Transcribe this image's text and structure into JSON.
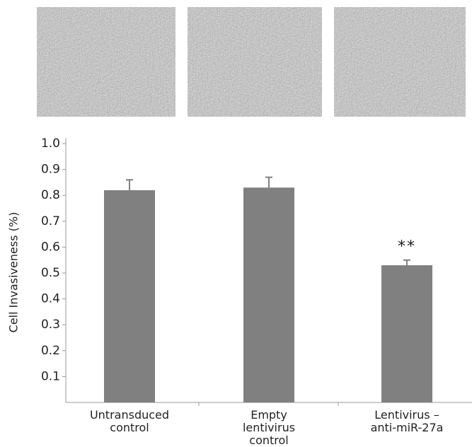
{
  "chart_data": {
    "type": "bar",
    "ylabel": "Cell Invasiveness (%)",
    "categories": [
      "Untransduced control",
      "Empty lentivirus control",
      "Lentivirus – anti-miR-27a"
    ],
    "values": [
      0.82,
      0.83,
      0.53
    ],
    "errors": [
      0.04,
      0.04,
      0.02
    ],
    "color": "#808080",
    "ylim": [
      0,
      1
    ],
    "yticks": [
      0.1,
      0.2,
      0.3,
      0.4,
      0.5,
      0.6,
      0.7,
      0.8,
      0.9,
      {
        "value": 1,
        "label": "1.0"
      }
    ],
    "annotations": [
      {
        "text": "**",
        "category": 2
      }
    ]
  }
}
